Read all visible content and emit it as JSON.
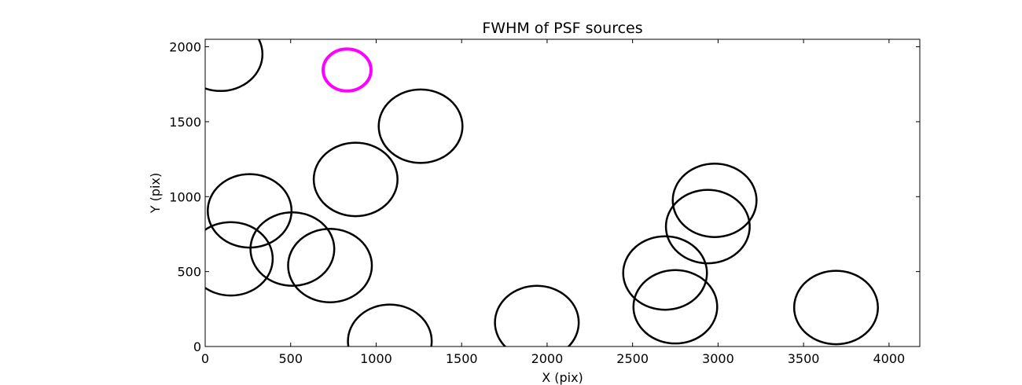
{
  "chart_data": {
    "type": "scatter",
    "title": "FWHM of PSF sources",
    "xlabel": "X (pix)",
    "ylabel": "Y (pix)",
    "xlim": [
      0,
      4180
    ],
    "ylim": [
      0,
      2050
    ],
    "xticks": [
      0,
      500,
      1000,
      1500,
      2000,
      2500,
      3000,
      3500,
      4000
    ],
    "yticks": [
      0,
      500,
      1000,
      1500,
      2000
    ],
    "grid": false,
    "marker": "circle",
    "marker_size_note": "circle radius in pixel units",
    "series": [
      {
        "color": "#000000",
        "points": [
          {
            "x": 90,
            "y": 1950,
            "r": 245
          },
          {
            "x": 1260,
            "y": 1470,
            "r": 245
          },
          {
            "x": 880,
            "y": 1115,
            "r": 245
          },
          {
            "x": 260,
            "y": 905,
            "r": 245
          },
          {
            "x": 150,
            "y": 585,
            "r": 245
          },
          {
            "x": 510,
            "y": 650,
            "r": 245
          },
          {
            "x": 730,
            "y": 540,
            "r": 245
          },
          {
            "x": 1080,
            "y": 35,
            "r": 245
          },
          {
            "x": 1940,
            "y": 160,
            "r": 245
          },
          {
            "x": 2690,
            "y": 490,
            "r": 245
          },
          {
            "x": 2750,
            "y": 265,
            "r": 245
          },
          {
            "x": 2940,
            "y": 800,
            "r": 245
          },
          {
            "x": 2980,
            "y": 975,
            "r": 245
          },
          {
            "x": 3690,
            "y": 260,
            "r": 245
          }
        ]
      },
      {
        "color": "#ff00ff",
        "points": [
          {
            "x": 830,
            "y": 1845,
            "r": 140
          }
        ]
      }
    ]
  }
}
